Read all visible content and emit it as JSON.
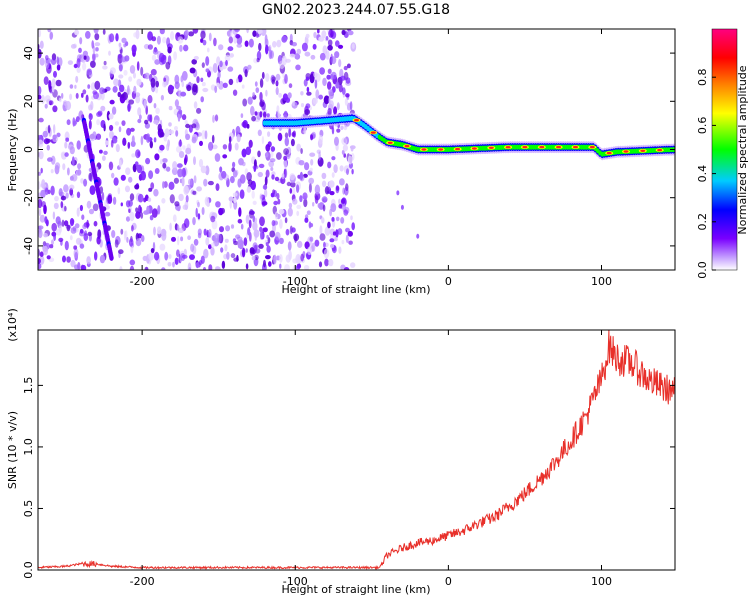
{
  "title": "GN02.2023.244.07.55.G18",
  "chart_data": [
    {
      "type": "heatmap",
      "xlabel": "Height of straight line (km)",
      "ylabel": "Frequency (Hz)",
      "xlim": [
        -268,
        148
      ],
      "ylim": [
        -50,
        50
      ],
      "xticks": [
        -200,
        -100,
        0,
        100
      ],
      "yticks": [
        -40,
        -20,
        0,
        20,
        40
      ],
      "colorbar": {
        "label": "Normalized spectral amplitude",
        "range": [
          0,
          1
        ],
        "ticks": [
          "0.0",
          "0.2",
          "0.4",
          "0.6",
          "0.8"
        ],
        "colors": [
          "#ffffff",
          "#c7a3ff",
          "#7a00ff",
          "#0000ff",
          "#00ccff",
          "#00ff00",
          "#ffff00",
          "#ff8000",
          "#ff0000",
          "#ff0080"
        ]
      },
      "noise_region_x": [
        -268,
        -62
      ],
      "ridge": [
        {
          "x": -120,
          "f": 11
        },
        {
          "x": -100,
          "f": 11
        },
        {
          "x": -80,
          "f": 12
        },
        {
          "x": -62,
          "f": 13
        },
        {
          "x": -55,
          "f": 10
        },
        {
          "x": -47,
          "f": 6
        },
        {
          "x": -40,
          "f": 3
        },
        {
          "x": -30,
          "f": 2
        },
        {
          "x": -20,
          "f": 0
        },
        {
          "x": 0,
          "f": 0
        },
        {
          "x": 40,
          "f": 1
        },
        {
          "x": 70,
          "f": 1
        },
        {
          "x": 95,
          "f": 1
        },
        {
          "x": 100,
          "f": -2
        },
        {
          "x": 110,
          "f": -1
        },
        {
          "x": 148,
          "f": 0
        }
      ],
      "streak": [
        {
          "x": -238,
          "f": 12
        },
        {
          "x": -220,
          "f": -45
        }
      ]
    },
    {
      "type": "line",
      "xlabel": "Height of straight line (km)",
      "ylabel": "SNR (10 * v/v)",
      "multiplier": "(x10⁴)",
      "xlim": [
        -268,
        148
      ],
      "ylim": [
        0,
        1.95
      ],
      "xticks": [
        -200,
        -100,
        0,
        100
      ],
      "yticks": [
        0.0,
        0.5,
        1.0,
        1.5
      ],
      "ytick_labels": [
        "0.0",
        "0.5",
        "1.0",
        "1.5"
      ],
      "line_color": "#e8302a",
      "series": [
        {
          "x": [
            -268,
            -250,
            -240,
            -230,
            -220,
            -200,
            -150,
            -100,
            -60,
            -45,
            -40,
            -30,
            -20,
            -10,
            0,
            10,
            20,
            30,
            40,
            50,
            60,
            70,
            80,
            90,
            100,
            105,
            110,
            120,
            130,
            140,
            148
          ],
          "values": [
            0.02,
            0.03,
            0.05,
            0.05,
            0.03,
            0.02,
            0.02,
            0.02,
            0.02,
            0.02,
            0.12,
            0.18,
            0.22,
            0.24,
            0.28,
            0.32,
            0.38,
            0.43,
            0.52,
            0.62,
            0.74,
            0.88,
            1.05,
            1.25,
            1.55,
            1.82,
            1.72,
            1.68,
            1.55,
            1.48,
            1.45
          ]
        }
      ]
    }
  ]
}
